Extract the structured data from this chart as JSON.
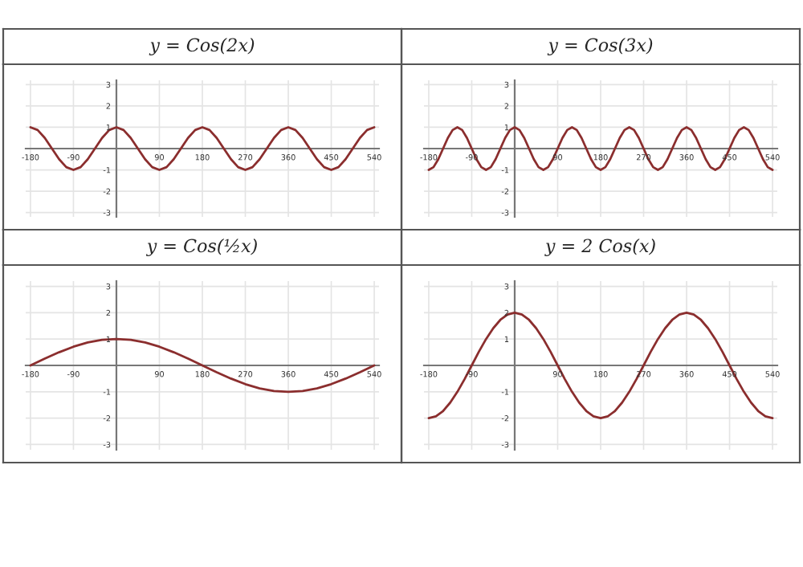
{
  "chart_data": [
    {
      "type": "line",
      "title": "y = Cos(2x)",
      "xlim": [
        -190,
        550
      ],
      "ylim": [
        -3.2,
        3.2
      ],
      "xticks": [
        -180,
        -90,
        90,
        180,
        270,
        360,
        450,
        540
      ],
      "yticks": [
        -3,
        -2,
        -1,
        1,
        2,
        3
      ],
      "grid": true,
      "series": [
        {
          "color": "#8b2e2e",
          "x": [
            -180,
            -165,
            -150,
            -135,
            -120,
            -105,
            -90,
            -75,
            -60,
            -45,
            -30,
            -15,
            0,
            15,
            30,
            45,
            60,
            75,
            90,
            105,
            120,
            135,
            150,
            165,
            180,
            195,
            210,
            225,
            240,
            255,
            270,
            285,
            300,
            315,
            330,
            345,
            360,
            375,
            390,
            405,
            420,
            435,
            450,
            465,
            480,
            495,
            510,
            525,
            540
          ],
          "values": [
            1,
            0.87,
            0.5,
            0,
            -0.5,
            -0.87,
            -1,
            -0.87,
            -0.5,
            0,
            0.5,
            0.87,
            1,
            0.87,
            0.5,
            0,
            -0.5,
            -0.87,
            -1,
            -0.87,
            -0.5,
            0,
            0.5,
            0.87,
            1,
            0.87,
            0.5,
            0,
            -0.5,
            -0.87,
            -1,
            -0.87,
            -0.5,
            0,
            0.5,
            0.87,
            1,
            0.87,
            0.5,
            0,
            -0.5,
            -0.87,
            -1,
            -0.87,
            -0.5,
            0,
            0.5,
            0.87,
            1
          ]
        }
      ]
    },
    {
      "type": "line",
      "title": "y = Cos(3x)",
      "xlim": [
        -190,
        550
      ],
      "ylim": [
        -3.2,
        3.2
      ],
      "xticks": [
        -180,
        -90,
        90,
        180,
        270,
        360,
        450,
        540
      ],
      "yticks": [
        -3,
        -2,
        -1,
        1,
        2,
        3
      ],
      "grid": true,
      "series": [
        {
          "color": "#8b2e2e",
          "x": [
            -180,
            -170,
            -160,
            -150,
            -140,
            -130,
            -120,
            -110,
            -100,
            -90,
            -80,
            -70,
            -60,
            -50,
            -40,
            -30,
            -20,
            -10,
            0,
            10,
            20,
            30,
            40,
            50,
            60,
            70,
            80,
            90,
            100,
            110,
            120,
            130,
            140,
            150,
            160,
            170,
            180,
            190,
            200,
            210,
            220,
            230,
            240,
            250,
            260,
            270,
            280,
            290,
            300,
            310,
            320,
            330,
            340,
            350,
            360,
            370,
            380,
            390,
            400,
            410,
            420,
            430,
            440,
            450,
            460,
            470,
            480,
            490,
            500,
            510,
            520,
            530,
            540
          ],
          "values": [
            -1,
            -0.87,
            -0.5,
            0,
            0.5,
            0.87,
            1,
            0.87,
            0.5,
            0,
            -0.5,
            -0.87,
            -1,
            -0.87,
            -0.5,
            0,
            0.5,
            0.87,
            1,
            0.87,
            0.5,
            0,
            -0.5,
            -0.87,
            -1,
            -0.87,
            -0.5,
            0,
            0.5,
            0.87,
            1,
            0.87,
            0.5,
            0,
            -0.5,
            -0.87,
            -1,
            -0.87,
            -0.5,
            0,
            0.5,
            0.87,
            1,
            0.87,
            0.5,
            0,
            -0.5,
            -0.87,
            -1,
            -0.87,
            -0.5,
            0,
            0.5,
            0.87,
            1,
            0.87,
            0.5,
            0,
            -0.5,
            -0.87,
            -1,
            -0.87,
            -0.5,
            0,
            0.5,
            0.87,
            1,
            0.87,
            0.5,
            0,
            -0.5,
            -0.87,
            -1
          ]
        }
      ]
    },
    {
      "type": "line",
      "title": "y = Cos(½x)",
      "xlim": [
        -190,
        550
      ],
      "ylim": [
        -3.2,
        3.2
      ],
      "xticks": [
        -180,
        -90,
        90,
        180,
        270,
        360,
        450,
        540
      ],
      "yticks": [
        -3,
        -2,
        -1,
        1,
        2,
        3
      ],
      "grid": true,
      "series": [
        {
          "color": "#8b2e2e",
          "x": [
            -180,
            -150,
            -120,
            -90,
            -60,
            -30,
            0,
            30,
            60,
            90,
            120,
            150,
            180,
            210,
            240,
            270,
            300,
            330,
            360,
            390,
            420,
            450,
            480,
            510,
            540
          ],
          "values": [
            0,
            0.26,
            0.5,
            0.71,
            0.87,
            0.97,
            1,
            0.97,
            0.87,
            0.71,
            0.5,
            0.26,
            0,
            -0.26,
            -0.5,
            -0.71,
            -0.87,
            -0.97,
            -1,
            -0.97,
            -0.87,
            -0.71,
            -0.5,
            -0.26,
            0
          ]
        }
      ]
    },
    {
      "type": "line",
      "title": "y = 2 Cos(x)",
      "xlim": [
        -190,
        550
      ],
      "ylim": [
        -3.2,
        3.2
      ],
      "xticks": [
        -180,
        -90,
        90,
        180,
        270,
        360,
        450,
        540
      ],
      "yticks": [
        -3,
        -2,
        -1,
        1,
        2,
        3
      ],
      "grid": true,
      "series": [
        {
          "color": "#8b2e2e",
          "x": [
            -180,
            -165,
            -150,
            -135,
            -120,
            -105,
            -90,
            -75,
            -60,
            -45,
            -30,
            -15,
            0,
            15,
            30,
            45,
            60,
            75,
            90,
            105,
            120,
            135,
            150,
            165,
            180,
            195,
            210,
            225,
            240,
            255,
            270,
            285,
            300,
            315,
            330,
            345,
            360,
            375,
            390,
            405,
            420,
            435,
            450,
            465,
            480,
            495,
            510,
            525,
            540
          ],
          "values": [
            -2,
            -1.93,
            -1.73,
            -1.41,
            -1,
            -0.52,
            0,
            0.52,
            1,
            1.41,
            1.73,
            1.93,
            2,
            1.93,
            1.73,
            1.41,
            1,
            0.52,
            0,
            -0.52,
            -1,
            -1.41,
            -1.73,
            -1.93,
            -2,
            -1.93,
            -1.73,
            -1.41,
            -1,
            -0.52,
            0,
            0.52,
            1,
            1.41,
            1.73,
            1.93,
            2,
            1.93,
            1.73,
            1.41,
            1,
            0.52,
            0,
            -0.52,
            -1,
            -1.41,
            -1.73,
            -1.93,
            -2
          ]
        }
      ]
    }
  ]
}
